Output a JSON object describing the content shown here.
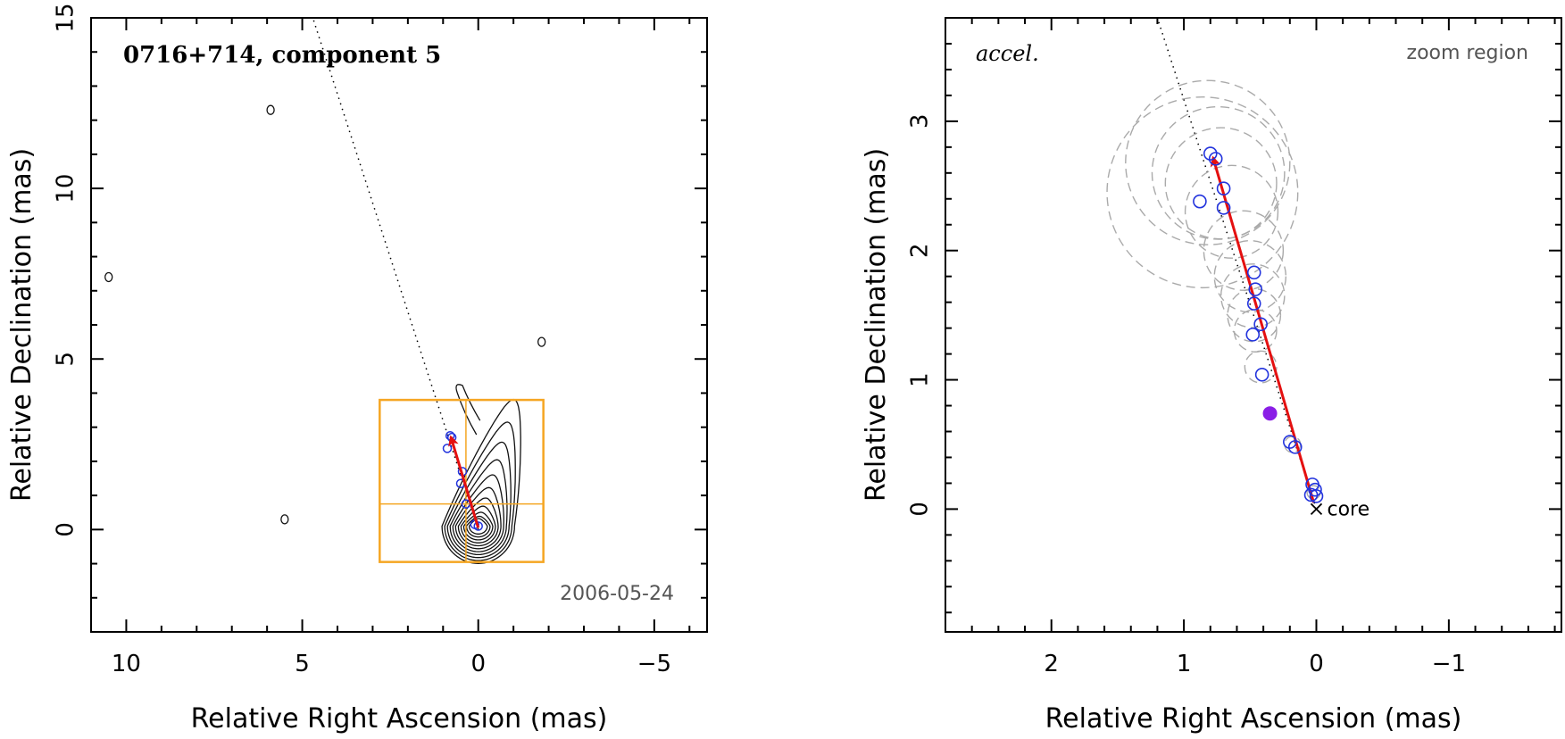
{
  "chart_data": [
    {
      "type": "scatter",
      "panel": "left",
      "title": "0716+714, component 5",
      "date_label": "2006-05-24",
      "xlabel": "Relative Right Ascension (mas)",
      "ylabel": "Relative Declination (mas)",
      "xlim": [
        11,
        -6.5
      ],
      "ylim": [
        -3,
        15
      ],
      "x_ticks": [
        10,
        5,
        0,
        -5
      ],
      "y_ticks": [
        0,
        5,
        10,
        15
      ],
      "x_tick_labels": [
        "10",
        "5",
        "0",
        "−5"
      ],
      "y_tick_labels": [
        "0",
        "5",
        "10",
        "15"
      ],
      "jet_direction_line": {
        "from": [
          0,
          0
        ],
        "to": [
          4.7,
          15
        ]
      },
      "zoom_box": {
        "x": [
          2.8,
          -1.85
        ],
        "y": [
          -0.95,
          3.8
        ],
        "cross_x": 0.35,
        "cross_y": 0.75
      },
      "velocity_arrow": {
        "from": [
          0,
          0.05
        ],
        "to": [
          0.78,
          2.72
        ]
      },
      "contour_peak": [
        0,
        0.1
      ],
      "islands": [
        [
          5.9,
          12.3
        ],
        [
          10.5,
          7.4
        ],
        [
          -1.8,
          5.5
        ],
        [
          5.5,
          0.3
        ]
      ],
      "component_positions": [
        [
          0.8,
          2.75
        ],
        [
          0.75,
          2.7
        ],
        [
          0.88,
          2.38
        ],
        [
          0.45,
          1.7
        ],
        [
          0.5,
          1.35
        ],
        [
          0.35,
          0.75
        ],
        [
          0.1,
          0.15
        ],
        [
          0,
          0.1
        ]
      ]
    },
    {
      "type": "scatter",
      "panel": "right",
      "title": "accel.",
      "region_label": "zoom region",
      "core_label": "core",
      "xlabel": "Relative Right Ascension (mas)",
      "ylabel": "Relative Declination (mas)",
      "xlim": [
        2.8,
        -1.85
      ],
      "ylim": [
        -0.95,
        3.8
      ],
      "x_ticks": [
        2,
        1,
        0,
        -1
      ],
      "y_ticks": [
        0,
        1,
        2,
        3
      ],
      "x_tick_labels": [
        "2",
        "1",
        "0",
        "−1"
      ],
      "y_tick_labels": [
        "0",
        "1",
        "2",
        "3"
      ],
      "jet_direction_line": {
        "from": [
          0,
          0
        ],
        "to": [
          1.2,
          3.8
        ]
      },
      "velocity_arrow": {
        "from": [
          0.02,
          0.05
        ],
        "to": [
          0.78,
          2.72
        ]
      },
      "series": [
        {
          "name": "component positions",
          "marker": "open-circle",
          "color": "#2233dd",
          "points": [
            [
              0.8,
              2.75
            ],
            [
              0.76,
              2.71
            ],
            [
              0.7,
              2.48
            ],
            [
              0.88,
              2.38
            ],
            [
              0.7,
              2.33
            ],
            [
              0.47,
              1.83
            ],
            [
              0.46,
              1.7
            ],
            [
              0.47,
              1.59
            ],
            [
              0.42,
              1.43
            ],
            [
              0.48,
              1.35
            ],
            [
              0.41,
              1.04
            ],
            [
              0.2,
              0.52
            ],
            [
              0.16,
              0.48
            ],
            [
              0.03,
              0.19
            ],
            [
              0.01,
              0.15
            ],
            [
              0.04,
              0.11
            ],
            [
              0.0,
              0.1
            ]
          ]
        },
        {
          "name": "acceleration point",
          "marker": "filled-circle",
          "color": "#8a1ee6",
          "points": [
            [
              0.35,
              0.74
            ]
          ]
        },
        {
          "name": "uncertainty circles",
          "marker": "dashed-circle",
          "color": "#aaaaaa",
          "circles": [
            [
              0.86,
              2.45,
              0.72
            ],
            [
              0.82,
              2.68,
              0.62
            ],
            [
              0.74,
              2.6,
              0.5
            ],
            [
              0.72,
              2.52,
              0.42
            ],
            [
              0.64,
              2.3,
              0.35
            ],
            [
              0.55,
              2.0,
              0.3
            ],
            [
              0.5,
              1.8,
              0.27
            ],
            [
              0.48,
              1.65,
              0.24
            ],
            [
              0.47,
              1.5,
              0.2
            ],
            [
              0.46,
              1.38,
              0.16
            ],
            [
              0.42,
              1.1,
              0.12
            ],
            [
              0.18,
              0.5,
              0.06
            ],
            [
              0.02,
              0.13,
              0.05
            ]
          ]
        }
      ]
    }
  ]
}
